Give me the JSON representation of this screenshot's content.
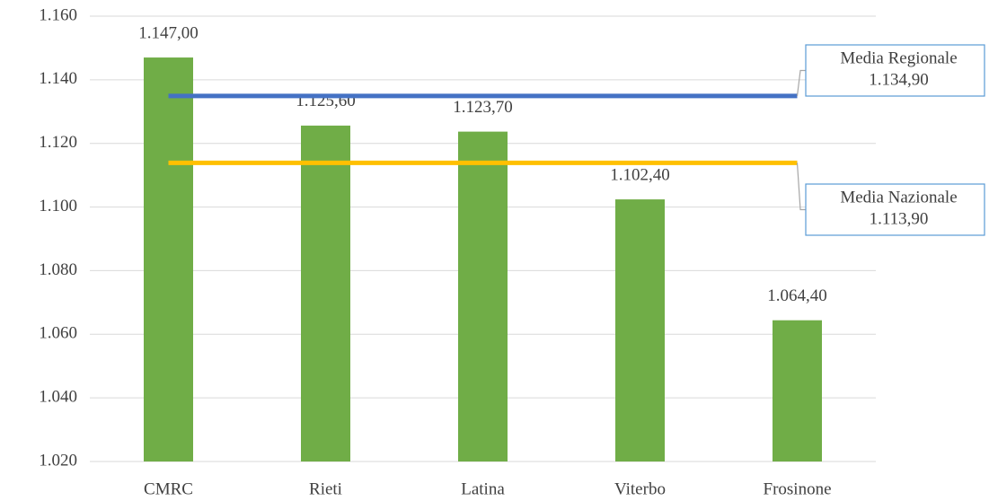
{
  "chart_data": {
    "type": "bar",
    "categories": [
      "CMRC",
      "Rieti",
      "Latina",
      "Viterbo",
      "Frosinone"
    ],
    "values": [
      1147,
      1125.6,
      1123.7,
      1102.4,
      1064.4
    ],
    "value_labels": [
      "1.147,00",
      "1.125,60",
      "1.123,70",
      "1.102,40",
      "1.064,40"
    ],
    "color": "#70ad47",
    "ylim": [
      1020,
      1160
    ],
    "yticks": [
      {
        "value": 1020,
        "label": "1.020"
      },
      {
        "value": 1040,
        "label": "1.040"
      },
      {
        "value": 1060,
        "label": "1.060"
      },
      {
        "value": 1080,
        "label": "1.080"
      },
      {
        "value": 1100,
        "label": "1.100"
      },
      {
        "value": 1120,
        "label": "1.120"
      },
      {
        "value": 1140,
        "label": "1.140"
      },
      {
        "value": 1160,
        "label": "1.160"
      }
    ],
    "grid": true,
    "reference_lines": [
      {
        "name": "Media Regionale",
        "value": 1134.9,
        "value_label": "1.134,90",
        "color": "#4472c4"
      },
      {
        "name": "Media Nazionale",
        "value": 1113.9,
        "value_label": "1.113,90",
        "color": "#ffc000"
      }
    ]
  }
}
